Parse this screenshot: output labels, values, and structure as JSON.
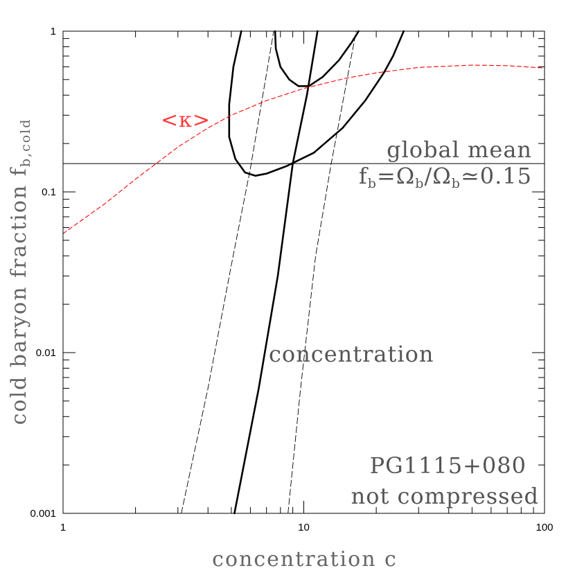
{
  "chart_data": {
    "type": "line",
    "title": "",
    "xlabel": "concentration c",
    "ylabel": "cold baryon fraction f",
    "ylabel_subscript": "b,cold",
    "xscale": "log",
    "yscale": "log",
    "xlim": [
      1,
      100
    ],
    "ylim": [
      0.001,
      1
    ],
    "x_tick_labels": [
      {
        "value": 1,
        "label": "1"
      },
      {
        "value": 10,
        "label": "10"
      },
      {
        "value": 100,
        "label": "100"
      }
    ],
    "y_tick_labels": [
      {
        "value": 0.001,
        "label": "0.001"
      },
      {
        "value": 0.01,
        "label": "0.01"
      },
      {
        "value": 0.1,
        "label": "0.1"
      },
      {
        "value": 1,
        "label": "1"
      }
    ],
    "grid": false,
    "series": [
      {
        "style": "thick-solid",
        "color": "#000000",
        "points": [
          [
            5.15,
            0.001
          ],
          [
            6.5,
            0.006
          ],
          [
            7.8,
            0.03
          ],
          [
            9.0,
            0.15
          ],
          [
            10.3,
            0.4
          ],
          [
            11.4,
            1.0
          ]
        ]
      },
      {
        "style": "dashed",
        "color": "#000000",
        "points": [
          [
            3.1,
            0.001
          ],
          [
            4.0,
            0.006
          ],
          [
            5.0,
            0.035
          ],
          [
            6.0,
            0.14
          ],
          [
            7.5,
            1.0
          ]
        ]
      },
      {
        "style": "dashed",
        "color": "#000000",
        "points": [
          [
            8.6,
            0.001
          ],
          [
            9.7,
            0.006
          ],
          [
            11.2,
            0.04
          ],
          [
            13.0,
            0.15
          ],
          [
            16.5,
            1.0
          ]
        ]
      },
      {
        "style": "thick-solid",
        "color": "#000000",
        "points": [
          [
            5.5,
            1.0
          ],
          [
            5.1,
            0.6
          ],
          [
            4.9,
            0.35
          ],
          [
            4.9,
            0.22
          ],
          [
            5.2,
            0.16
          ],
          [
            5.7,
            0.132
          ],
          [
            6.3,
            0.126
          ],
          [
            7.0,
            0.13
          ],
          [
            8.5,
            0.145
          ],
          [
            11.0,
            0.175
          ],
          [
            14.5,
            0.25
          ],
          [
            18.0,
            0.37
          ],
          [
            21.5,
            0.55
          ],
          [
            23.5,
            0.7
          ],
          [
            26.0,
            1.0
          ]
        ]
      },
      {
        "style": "thick-solid",
        "color": "#000000",
        "points": [
          [
            7.6,
            1.0
          ],
          [
            7.65,
            0.78
          ],
          [
            8.0,
            0.6
          ],
          [
            8.7,
            0.5
          ],
          [
            9.5,
            0.455
          ],
          [
            10.5,
            0.455
          ],
          [
            12.0,
            0.52
          ],
          [
            14.0,
            0.66
          ],
          [
            15.8,
            0.85
          ],
          [
            16.9,
            1.0
          ]
        ]
      },
      {
        "name": "<κ>",
        "style": "dashed",
        "color": "#ff0000",
        "points": [
          [
            1.0,
            0.055
          ],
          [
            1.5,
            0.085
          ],
          [
            2.0,
            0.12
          ],
          [
            3.0,
            0.19
          ],
          [
            4.0,
            0.25
          ],
          [
            5.0,
            0.3
          ],
          [
            7.0,
            0.37
          ],
          [
            10.0,
            0.44
          ],
          [
            15.0,
            0.51
          ],
          [
            20.0,
            0.55
          ],
          [
            30.0,
            0.595
          ],
          [
            50.0,
            0.615
          ],
          [
            70.0,
            0.61
          ],
          [
            100.0,
            0.59
          ]
        ]
      }
    ],
    "hlines": [
      {
        "y": 0.15,
        "style": "solid",
        "color": "#000000"
      }
    ],
    "annotations": [
      {
        "key": "kappa",
        "text": "<κ>",
        "color": "#ff0000"
      },
      {
        "key": "global",
        "text": "global mean",
        "color": "#555555"
      },
      {
        "key": "fb_eq",
        "f": "f",
        "f_sub": "b",
        "mid": "=Ω",
        "mid_sub": "b",
        "slash": "/Ω",
        "slash_sub": "b",
        "tail": "≃0.15",
        "color": "#555555"
      },
      {
        "key": "conc",
        "text": "concentration",
        "color": "#555555"
      },
      {
        "key": "pg",
        "text": "PG1115+080",
        "color": "#555555"
      },
      {
        "key": "nc",
        "text": "not compressed",
        "color": "#555555"
      }
    ]
  }
}
